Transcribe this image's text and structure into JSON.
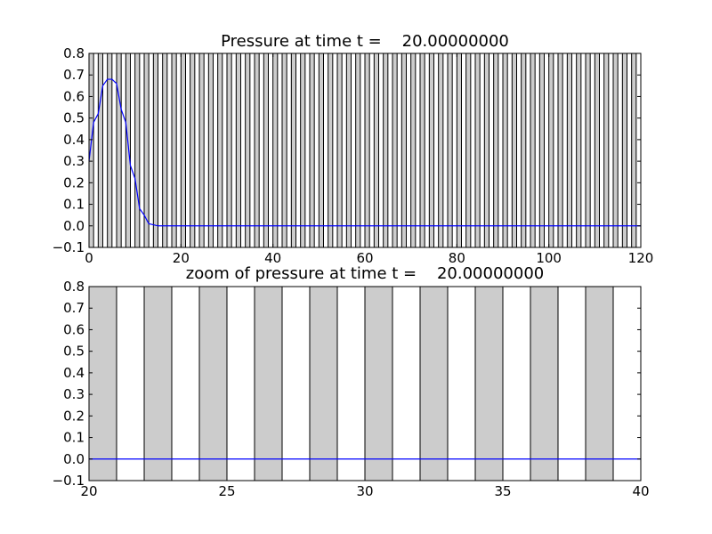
{
  "chart_data": [
    {
      "type": "line",
      "title": "Pressure at time t =    20.00000000",
      "xlim": [
        0,
        120
      ],
      "ylim": [
        -0.1,
        0.8
      ],
      "xticks": [
        0,
        20,
        40,
        60,
        80,
        100,
        120
      ],
      "xtick_labels": [
        "0",
        "20",
        "40",
        "60",
        "80",
        "100",
        "120"
      ],
      "yticks": [
        -0.1,
        0.0,
        0.1,
        0.2,
        0.3,
        0.4,
        0.5,
        0.6,
        0.7,
        0.8
      ],
      "ytick_labels": [
        "−0.1",
        "0.0",
        "0.1",
        "0.2",
        "0.3",
        "0.4",
        "0.5",
        "0.6",
        "0.7",
        "0.8"
      ],
      "grid": false,
      "background_cells": {
        "fill": "#cccccc",
        "start": 0,
        "end": 120,
        "width": 1,
        "period": 2
      },
      "series": [
        {
          "color": "#0000ff",
          "x": [
            0,
            1,
            2,
            3,
            4,
            5,
            6,
            7,
            8,
            9,
            10,
            11,
            12,
            13,
            14,
            15,
            20,
            40,
            60,
            80,
            100,
            120
          ],
          "y": [
            0.3,
            0.48,
            0.52,
            0.65,
            0.68,
            0.68,
            0.66,
            0.54,
            0.48,
            0.28,
            0.22,
            0.08,
            0.05,
            0.01,
            0.005,
            0.0,
            0.0,
            0.0,
            0.0,
            0.0,
            0.0,
            0.0
          ]
        }
      ]
    },
    {
      "type": "line",
      "title": "zoom of pressure at time t =    20.00000000",
      "xlim": [
        20,
        40
      ],
      "ylim": [
        -0.1,
        0.8
      ],
      "xticks": [
        20,
        25,
        30,
        35,
        40
      ],
      "xtick_labels": [
        "20",
        "25",
        "30",
        "35",
        "40"
      ],
      "yticks": [
        -0.1,
        0.0,
        0.1,
        0.2,
        0.3,
        0.4,
        0.5,
        0.6,
        0.7,
        0.8
      ],
      "ytick_labels": [
        "−0.1",
        "0.0",
        "0.1",
        "0.2",
        "0.3",
        "0.4",
        "0.5",
        "0.6",
        "0.7",
        "0.8"
      ],
      "grid": false,
      "background_cells": {
        "fill": "#cccccc",
        "start": 20,
        "end": 40,
        "width": 1,
        "period": 2
      },
      "series": [
        {
          "color": "#0000ff",
          "x": [
            20,
            40
          ],
          "y": [
            0.0,
            0.0
          ]
        }
      ]
    }
  ]
}
